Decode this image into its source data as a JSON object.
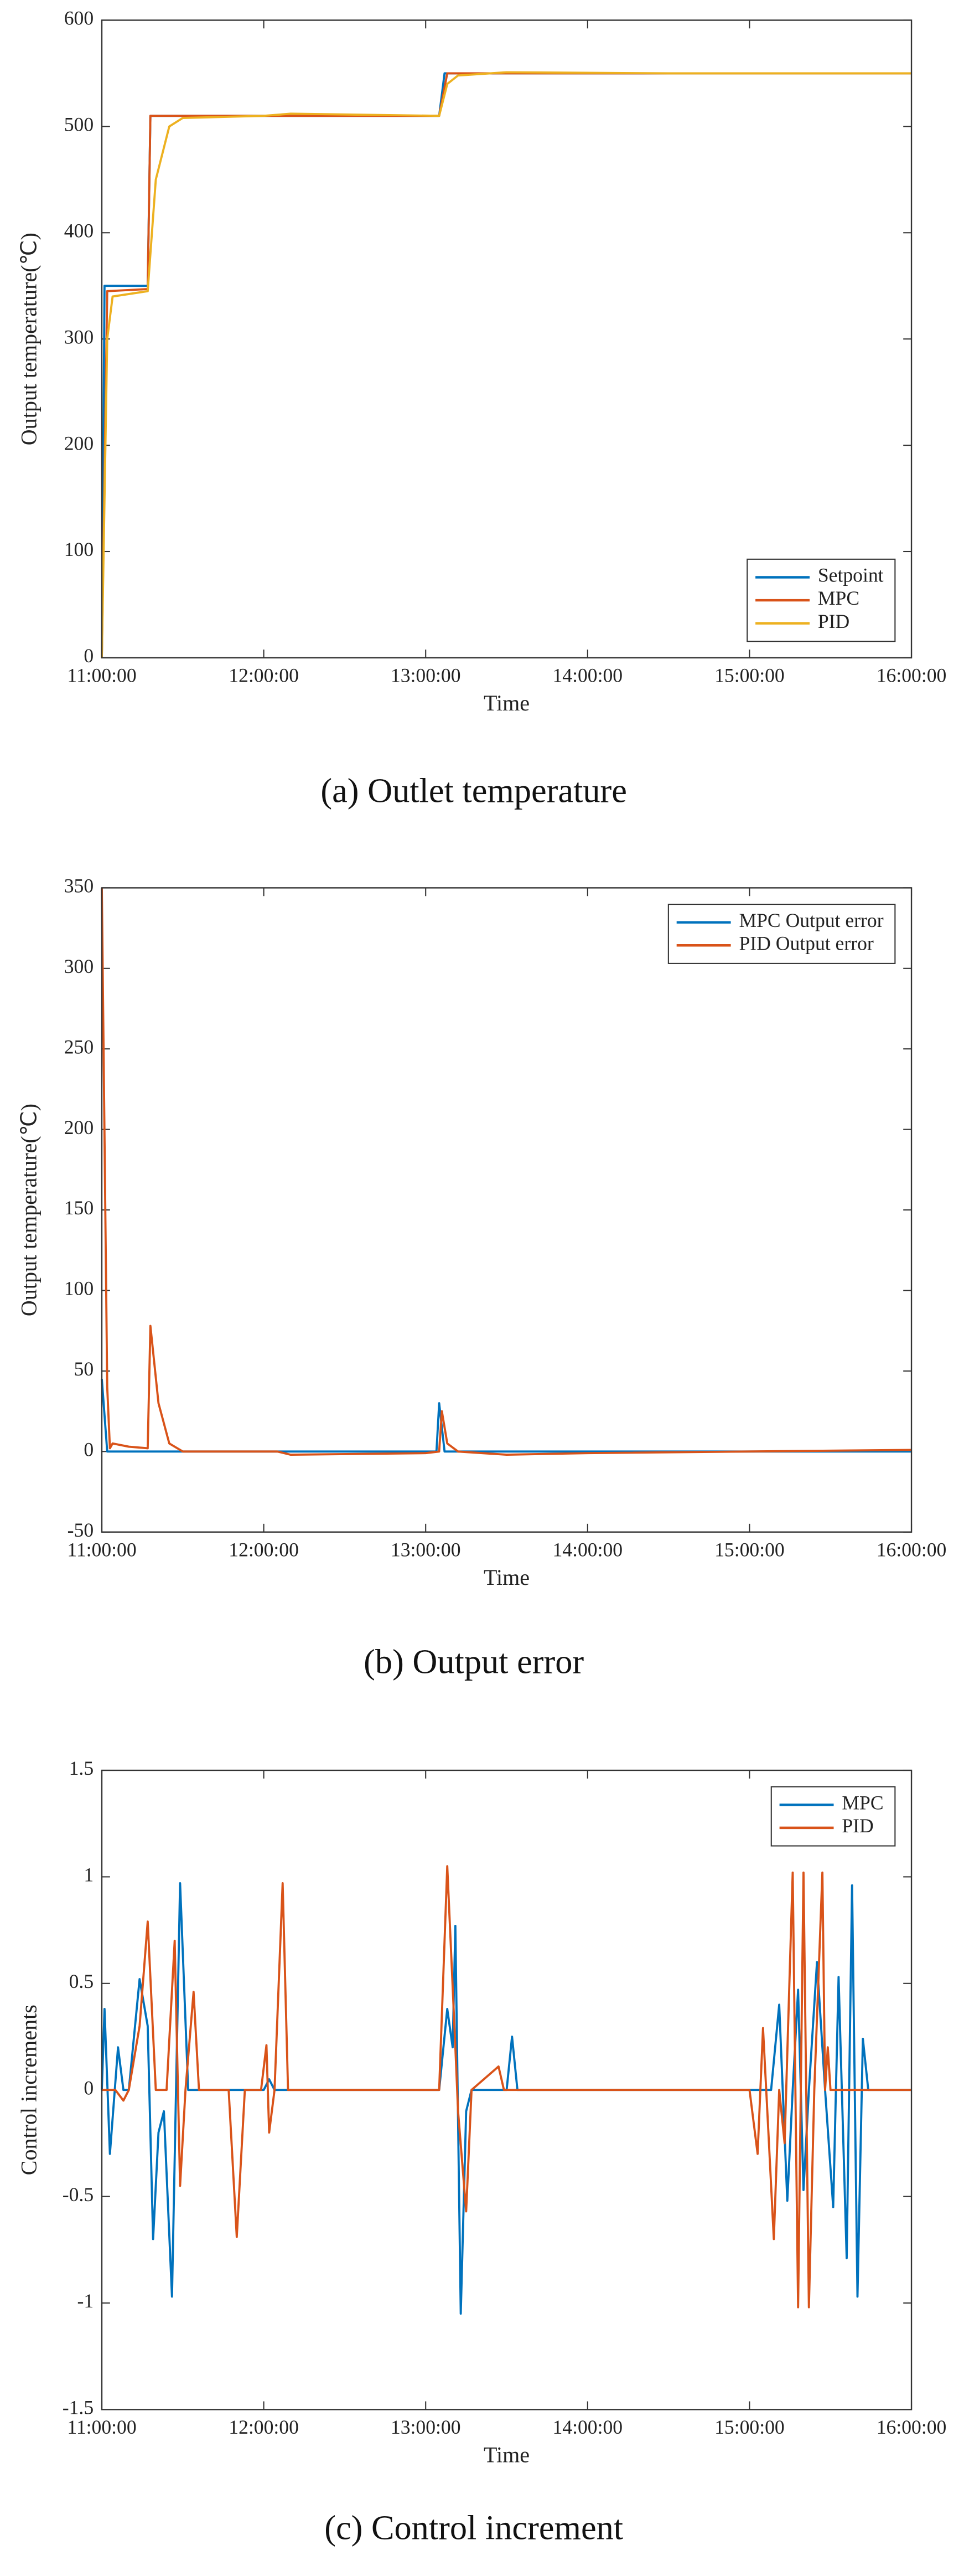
{
  "chart_data": [
    {
      "type": "line",
      "caption": "(a) Outlet temperature",
      "xlabel": "Time",
      "ylabel": "Output temperature(℃)",
      "xlim": [
        "11:00:00",
        "16:00:00"
      ],
      "xticks": [
        "11:00:00",
        "12:00:00",
        "13:00:00",
        "14:00:00",
        "15:00:00",
        "16:00:00"
      ],
      "ylim": [
        0,
        600
      ],
      "yticks": [
        0,
        100,
        200,
        300,
        400,
        500,
        600
      ],
      "legend": "lower right",
      "series": [
        {
          "name": "Setpoint",
          "color": "#0072bd",
          "x": [
            "11:00:00",
            "11:01:00",
            "11:17:00",
            "11:18:00",
            "13:05:00",
            "13:07:00",
            "16:00:00"
          ],
          "values": [
            0,
            350,
            350,
            510,
            510,
            550,
            550
          ]
        },
        {
          "name": "MPC",
          "color": "#d95319",
          "x": [
            "11:00:00",
            "11:02:00",
            "11:17:00",
            "11:18:00",
            "13:05:00",
            "13:08:00",
            "16:00:00"
          ],
          "values": [
            0,
            345,
            347,
            510,
            510,
            550,
            550
          ]
        },
        {
          "name": "PID",
          "color": "#edb120",
          "x": [
            "11:00:00",
            "11:02:00",
            "11:04:00",
            "11:17:00",
            "11:20:00",
            "11:25:00",
            "11:30:00",
            "12:00:00",
            "12:10:00",
            "13:05:00",
            "13:08:00",
            "13:12:00",
            "13:30:00",
            "14:30:00",
            "16:00:00"
          ],
          "values": [
            0,
            300,
            340,
            345,
            450,
            500,
            508,
            510,
            512,
            510,
            540,
            548,
            551,
            550,
            550
          ]
        }
      ]
    },
    {
      "type": "line",
      "caption": "(b) Output error",
      "xlabel": "Time",
      "ylabel": "Output temperature(℃)",
      "xlim": [
        "11:00:00",
        "16:00:00"
      ],
      "xticks": [
        "11:00:00",
        "12:00:00",
        "13:00:00",
        "14:00:00",
        "15:00:00",
        "16:00:00"
      ],
      "ylim": [
        -50,
        350
      ],
      "yticks": [
        -50,
        0,
        50,
        100,
        150,
        200,
        250,
        300,
        350
      ],
      "legend": "upper right",
      "series": [
        {
          "name": "MPC Output error",
          "color": "#0072bd",
          "x": [
            "11:00:00",
            "11:02:00",
            "13:04:00",
            "13:05:00",
            "13:07:00",
            "16:00:00"
          ],
          "values": [
            45,
            0,
            0,
            30,
            0,
            0
          ]
        },
        {
          "name": "PID Output error",
          "color": "#d95319",
          "x": [
            "11:00:00",
            "11:02:00",
            "11:03:00",
            "11:04:00",
            "11:10:00",
            "11:17:00",
            "11:18:00",
            "11:21:00",
            "11:25:00",
            "11:30:00",
            "12:05:00",
            "12:10:00",
            "13:00:00",
            "13:05:00",
            "13:06:00",
            "13:08:00",
            "13:12:00",
            "13:30:00",
            "14:00:00",
            "16:00:00"
          ],
          "values": [
            350,
            40,
            2,
            5,
            3,
            2,
            78,
            30,
            5,
            0,
            0,
            -2,
            -1,
            0,
            25,
            5,
            0,
            -2,
            -1,
            1
          ]
        }
      ]
    },
    {
      "type": "line",
      "caption": "(c) Control increment",
      "xlabel": "Time",
      "ylabel": "Control increments",
      "xlim": [
        "11:00:00",
        "16:00:00"
      ],
      "xticks": [
        "11:00:00",
        "12:00:00",
        "13:00:00",
        "14:00:00",
        "15:00:00",
        "16:00:00"
      ],
      "ylim": [
        -1.5,
        1.5
      ],
      "yticks": [
        -1.5,
        -1,
        -0.5,
        0,
        0.5,
        1,
        1.5
      ],
      "legend": "upper right",
      "series": [
        {
          "name": "MPC",
          "color": "#0072bd",
          "x": [
            "11:00:00",
            "11:01:00",
            "11:03:00",
            "11:06:00",
            "11:08:00",
            "11:10:00",
            "11:14:00",
            "11:17:00",
            "11:19:00",
            "11:21:00",
            "11:23:00",
            "11:26:00",
            "11:29:00",
            "11:32:00",
            "12:00:00",
            "12:02:00",
            "12:04:00",
            "13:05:00",
            "13:08:00",
            "13:10:00",
            "13:11:00",
            "13:13:00",
            "13:15:00",
            "13:17:00",
            "13:30:00",
            "13:32:00",
            "13:34:00",
            "15:00:00",
            "15:08:00",
            "15:11:00",
            "15:14:00",
            "15:16:00",
            "15:18:00",
            "15:20:00",
            "15:22:00",
            "15:25:00",
            "15:28:00",
            "15:31:00",
            "15:33:00",
            "15:36:00",
            "15:38:00",
            "15:40:00",
            "15:42:00",
            "15:44:00",
            "16:00:00"
          ],
          "values": [
            0,
            0.38,
            -0.3,
            0.2,
            0,
            0,
            0.52,
            0.3,
            -0.7,
            -0.2,
            -0.1,
            -0.97,
            0.97,
            0,
            0,
            0.05,
            0,
            0,
            0.38,
            0.2,
            0.77,
            -1.05,
            -0.1,
            0,
            0,
            0.25,
            0,
            0,
            0,
            0.4,
            -0.52,
            0,
            0.47,
            -0.47,
            0,
            0.6,
            0,
            -0.55,
            0.53,
            -0.79,
            0.96,
            -0.97,
            0.24,
            0,
            0
          ]
        },
        {
          "name": "PID",
          "color": "#d95319",
          "x": [
            "11:00:00",
            "11:05:00",
            "11:08:00",
            "11:10:00",
            "11:14:00",
            "11:17:00",
            "11:20:00",
            "11:24:00",
            "11:27:00",
            "11:29:00",
            "11:31:00",
            "11:34:00",
            "11:36:00",
            "11:47:00",
            "11:50:00",
            "11:53:00",
            "11:59:00",
            "12:01:00",
            "12:02:00",
            "12:04:00",
            "12:07:00",
            "12:09:00",
            "13:05:00",
            "13:08:00",
            "13:11:00",
            "13:12:00",
            "13:15:00",
            "13:17:00",
            "13:27:00",
            "13:29:00",
            "15:00:00",
            "15:03:00",
            "15:05:00",
            "15:07:00",
            "15:09:00",
            "15:11:00",
            "15:13:00",
            "15:16:00",
            "15:18:00",
            "15:19:00",
            "15:20:00",
            "15:22:00",
            "15:24:00",
            "15:27:00",
            "15:28:00",
            "15:29:00",
            "15:30:00",
            "16:00:00"
          ],
          "values": [
            0,
            0,
            -0.05,
            0,
            0.3,
            0.79,
            0,
            0,
            0.7,
            -0.45,
            0,
            0.46,
            0,
            0,
            -0.69,
            0,
            0,
            0.21,
            -0.2,
            0,
            0.97,
            0,
            0,
            1.05,
            0.2,
            -0.1,
            -0.57,
            0,
            0.11,
            0,
            0,
            -0.3,
            0.29,
            -0.2,
            -0.7,
            0,
            -0.25,
            1.02,
            -1.02,
            0,
            1.02,
            -1.02,
            0,
            1.02,
            0,
            0.2,
            0,
            0
          ]
        }
      ]
    }
  ]
}
